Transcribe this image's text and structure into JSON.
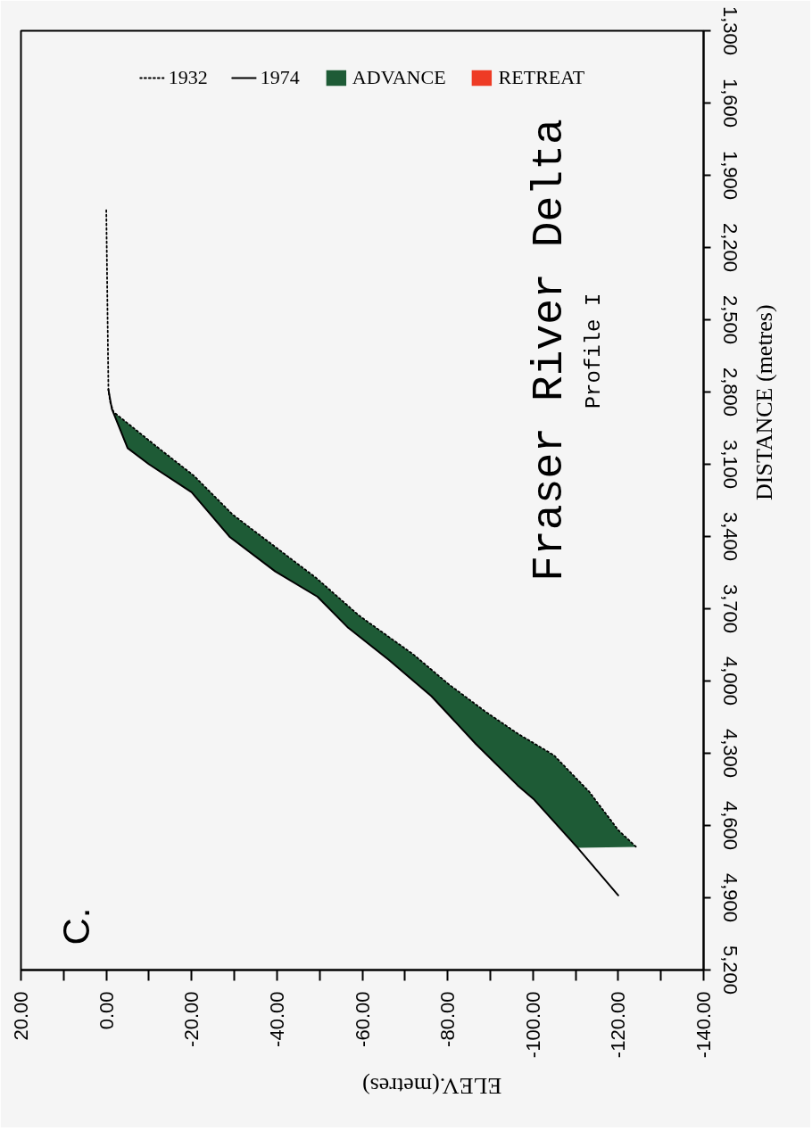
{
  "chart_data": {
    "type": "line",
    "title": "Fraser River Delta",
    "subtitle": "Profile I",
    "xlabel": "ELEV.(metres)",
    "ylabel": "DISTANCE (metres)",
    "annotations": [
      "C."
    ],
    "xlim": [
      20,
      -140
    ],
    "xticks": [
      {
        "value": 20,
        "label": "20.00"
      },
      {
        "value": 10,
        "label": null
      },
      {
        "value": 0,
        "label": "0.00"
      },
      {
        "value": -10,
        "label": null
      },
      {
        "value": -20,
        "label": "-20.00"
      },
      {
        "value": -30,
        "label": null
      },
      {
        "value": -40,
        "label": "-40.00"
      },
      {
        "value": -50,
        "label": null
      },
      {
        "value": -60,
        "label": "-60.00"
      },
      {
        "value": -70,
        "label": null
      },
      {
        "value": -80,
        "label": "-80.00"
      },
      {
        "value": -90,
        "label": null
      },
      {
        "value": -100,
        "label": "-100.00"
      },
      {
        "value": -110,
        "label": null
      },
      {
        "value": -120,
        "label": "-120.00"
      },
      {
        "value": -130,
        "label": null
      },
      {
        "value": -140,
        "label": "-140.00"
      }
    ],
    "ylim": [
      5200,
      1300
    ],
    "yticks": [
      {
        "value": 5200,
        "label": "5,200"
      },
      {
        "value": 4900,
        "label": "4,900"
      },
      {
        "value": 4600,
        "label": "4,600"
      },
      {
        "value": 4300,
        "label": "4,300"
      },
      {
        "value": 4000,
        "label": "4,000"
      },
      {
        "value": 3700,
        "label": "3,700"
      },
      {
        "value": 3400,
        "label": "3,400"
      },
      {
        "value": 3100,
        "label": "3,100"
      },
      {
        "value": 2800,
        "label": "2,800"
      },
      {
        "value": 2500,
        "label": "2,500"
      },
      {
        "value": 2200,
        "label": "2,200"
      },
      {
        "value": 1900,
        "label": "1,900"
      },
      {
        "value": 1600,
        "label": "1,600"
      },
      {
        "value": 1300,
        "label": "1,300"
      }
    ],
    "legend": "top",
    "series": [
      {
        "name": "1932",
        "line_style": "dotted",
        "color": "#000000",
        "x": [
          0.0,
          -0.5,
          -0.9,
          -1.7,
          -6.3,
          -11.4,
          -20.5,
          -29.7,
          -49.2,
          -59.3,
          -72.0,
          -80.3,
          -88.7,
          -96.4,
          -104.9,
          -113.2,
          -120.0,
          -124.2
        ],
        "values": [
          2045,
          2790,
          2841,
          2883,
          2948,
          3021,
          3147,
          3310,
          3572,
          3729,
          3890,
          4014,
          4125,
          4218,
          4308,
          4460,
          4619,
          4689
        ]
      },
      {
        "name": "1974",
        "line_style": "solid",
        "color": "#000000",
        "x": [
          -0.5,
          -1.3,
          -5.0,
          -10.0,
          -20.0,
          -29.0,
          -39.6,
          -49.5,
          -56.7,
          -66.4,
          -76.2,
          -86.6,
          -96.4,
          -100.3,
          -110.5,
          -120.0
        ],
        "values": [
          2790,
          2870,
          3033,
          3100,
          3216,
          3403,
          3545,
          3650,
          3779,
          3915,
          4063,
          4261,
          4433,
          4493,
          4693,
          4890
        ]
      },
      {
        "name": "ADVANCE",
        "type": "area",
        "color": "#1e5b36",
        "x": [
          -0.5,
          -1.3,
          -5.0,
          -10.0,
          -20.0,
          -29.0,
          -39.6,
          -49.5,
          -56.7,
          -66.4,
          -76.2,
          -86.6,
          -96.4,
          -100.3,
          -110.5,
          -124.2,
          -120.0,
          -113.2,
          -104.9,
          -96.4,
          -88.7,
          -80.3,
          -72.0,
          -59.3,
          -49.2,
          -29.7,
          -20.5,
          -11.4,
          -6.3,
          -1.7,
          -0.9
        ],
        "values": [
          2790,
          2870,
          3033,
          3100,
          3216,
          3403,
          3545,
          3650,
          3779,
          3915,
          4063,
          4261,
          4433,
          4493,
          4693,
          4689,
          4619,
          4460,
          4308,
          4218,
          4125,
          4014,
          3890,
          3729,
          3572,
          3310,
          3147,
          3021,
          2948,
          2883,
          2841
        ]
      },
      {
        "name": "RETREAT",
        "type": "area",
        "color": "#ee3b25"
      }
    ]
  }
}
